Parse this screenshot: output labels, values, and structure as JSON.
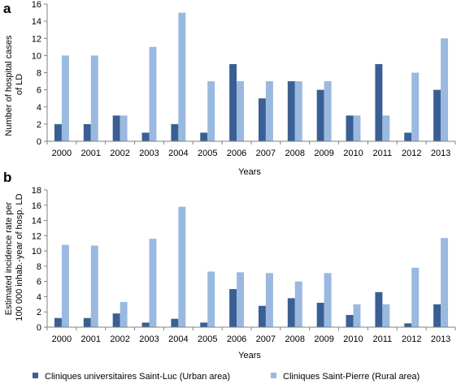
{
  "colors": {
    "urban": "#3a5f94",
    "rural": "#9ab9e0",
    "axis": "#808080",
    "background": "#ffffff"
  },
  "legend": {
    "urban_label": "Cliniques universitaires Saint-Luc (Urban area)",
    "rural_label": "Cliniques Saint-Pierre (Rural area)",
    "placement": "bottom"
  },
  "chart_data": [
    {
      "panel": "a",
      "type": "bar",
      "xlabel": "Years",
      "ylabel_lines": [
        "Number of hospital cases",
        "of LD"
      ],
      "ylim": [
        0,
        16
      ],
      "yticks": [
        0,
        2,
        4,
        6,
        8,
        10,
        12,
        14,
        16
      ],
      "grid": false,
      "categories": [
        "2000",
        "2001",
        "2002",
        "2003",
        "2004",
        "2005",
        "2006",
        "2007",
        "2008",
        "2009",
        "2010",
        "2011",
        "2012",
        "2013"
      ],
      "series": [
        {
          "name": "Cliniques universitaires Saint-Luc (Urban area)",
          "values": [
            2,
            2,
            3,
            1,
            2,
            1,
            9,
            5,
            7,
            6,
            3,
            9,
            1,
            6
          ]
        },
        {
          "name": "Cliniques Saint-Pierre (Rural area)",
          "values": [
            10,
            10,
            3,
            11,
            15,
            7,
            7,
            7,
            7,
            7,
            3,
            3,
            8,
            12
          ]
        }
      ]
    },
    {
      "panel": "b",
      "type": "bar",
      "xlabel": "Years",
      "ylabel_lines": [
        "Estimated incidence rate  per",
        "100 000 inhab.-year of hosp. LD"
      ],
      "ylim": [
        0,
        18
      ],
      "yticks": [
        0,
        2,
        4,
        6,
        8,
        10,
        12,
        14,
        16,
        18
      ],
      "grid": false,
      "categories": [
        "2000",
        "2001",
        "2002",
        "2003",
        "2004",
        "2005",
        "2006",
        "2007",
        "2008",
        "2009",
        "2010",
        "2011",
        "2012",
        "2013"
      ],
      "series": [
        {
          "name": "Cliniques universitaires Saint-Luc (Urban area)",
          "values": [
            1.2,
            1.2,
            1.8,
            0.6,
            1.1,
            0.6,
            5.0,
            2.8,
            3.8,
            3.2,
            1.6,
            4.6,
            0.5,
            3.0
          ]
        },
        {
          "name": "Cliniques Saint-Pierre (Rural area)",
          "values": [
            10.8,
            10.7,
            3.3,
            11.6,
            15.8,
            7.3,
            7.2,
            7.1,
            6.0,
            7.1,
            3.0,
            3.0,
            7.8,
            11.7
          ]
        }
      ]
    }
  ]
}
